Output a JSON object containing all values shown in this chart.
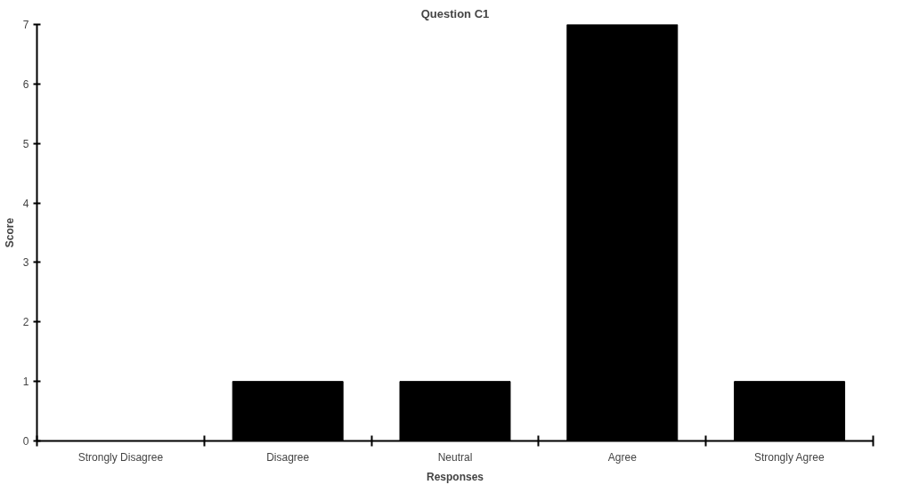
{
  "chart_data": {
    "type": "bar",
    "title": "Question C1",
    "xlabel": "Responses",
    "ylabel": "Score",
    "categories": [
      "Strongly Disagree",
      "Disagree",
      "Neutral",
      "Agree",
      "Strongly Agree"
    ],
    "values": [
      0,
      1,
      1,
      7,
      1
    ],
    "color": "#000000",
    "ylim": [
      0,
      7
    ],
    "yticks": [
      0,
      1,
      2,
      3,
      4,
      5,
      6,
      7
    ],
    "grid": false
  }
}
